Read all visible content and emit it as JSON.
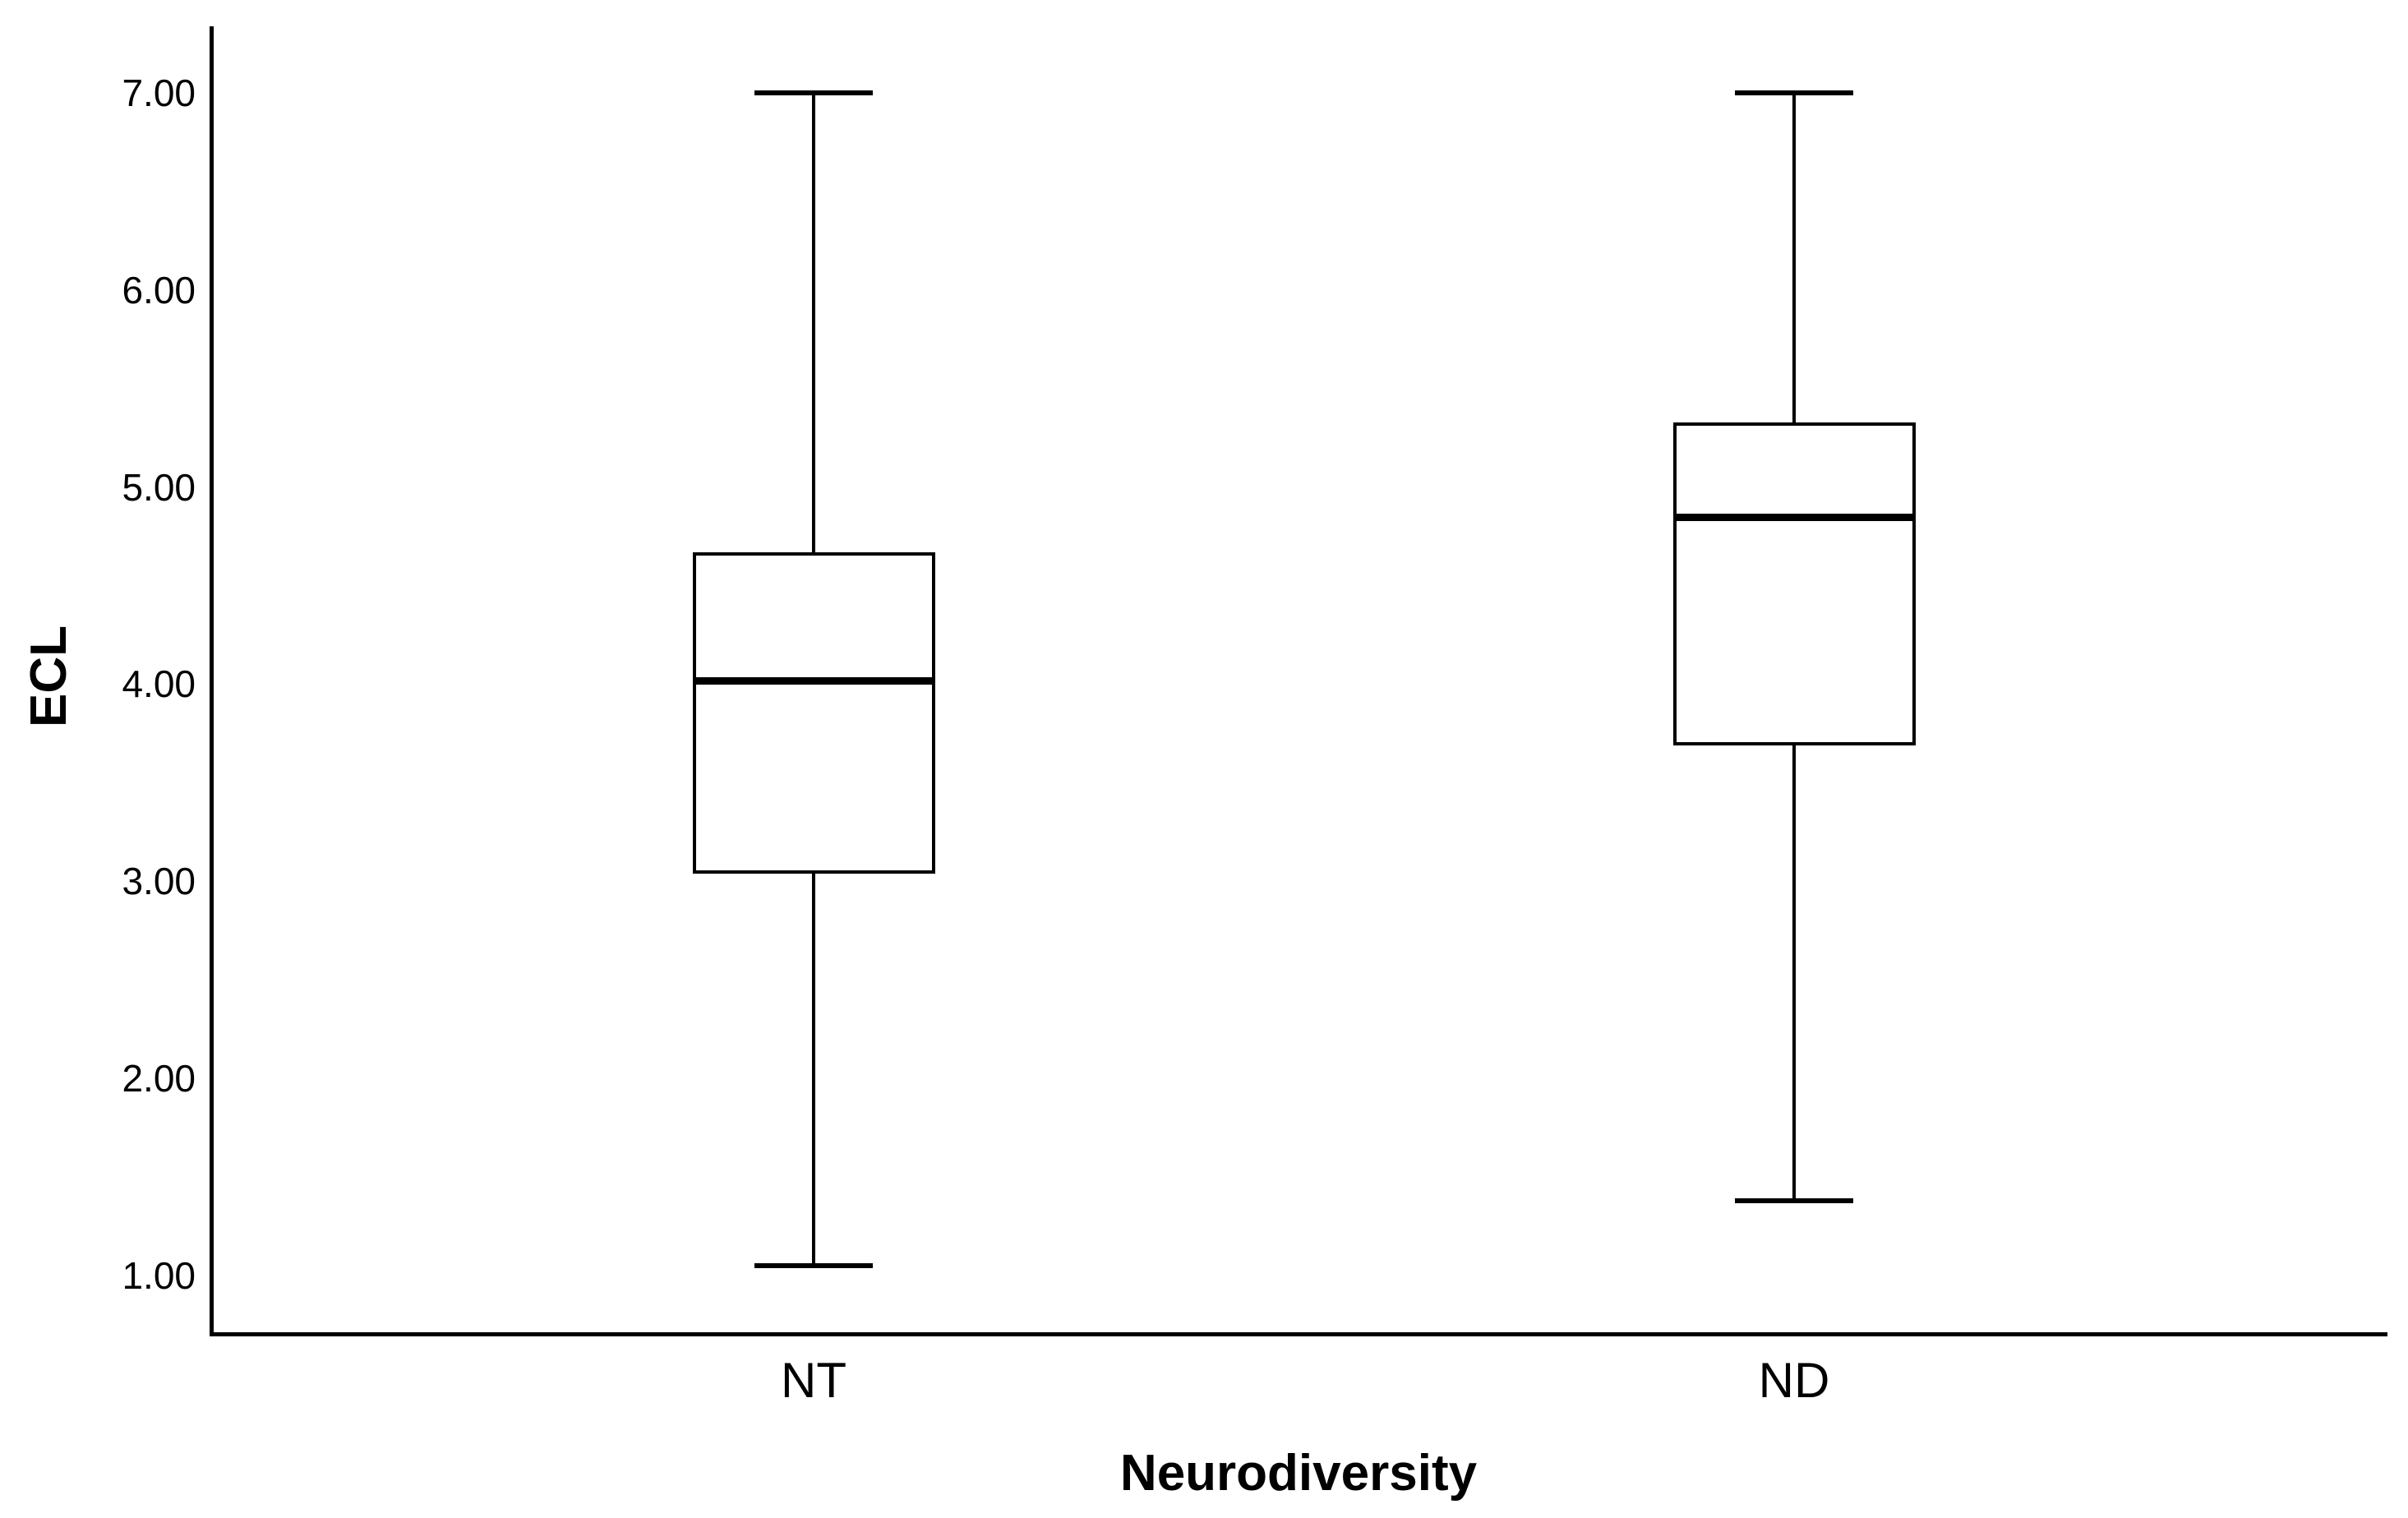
{
  "chart_data": {
    "type": "boxplot",
    "title": "",
    "xlabel": "Neurodiversity",
    "ylabel": "ECL",
    "categories": [
      "NT",
      "ND"
    ],
    "series": [
      {
        "name": "NT",
        "whisker_low": 1.05,
        "q1": 3.04,
        "median": 4.02,
        "q3": 4.67,
        "whisker_high": 7.0
      },
      {
        "name": "ND",
        "whisker_low": 1.38,
        "q1": 3.69,
        "median": 4.85,
        "q3": 5.33,
        "whisker_high": 7.0
      }
    ],
    "y_axis": {
      "range_min": 0.7,
      "range_max": 7.4,
      "tick_values": [
        1,
        2,
        3,
        4,
        5,
        6,
        7
      ],
      "tick_labels": [
        "1.00",
        "2.00",
        "3.00",
        "4.00",
        "5.00",
        "6.00",
        "7.00"
      ]
    },
    "grid": false,
    "legend": false,
    "colors": {
      "line": "#000000",
      "box_fill": "#ffffff",
      "background": "#ffffff"
    }
  }
}
